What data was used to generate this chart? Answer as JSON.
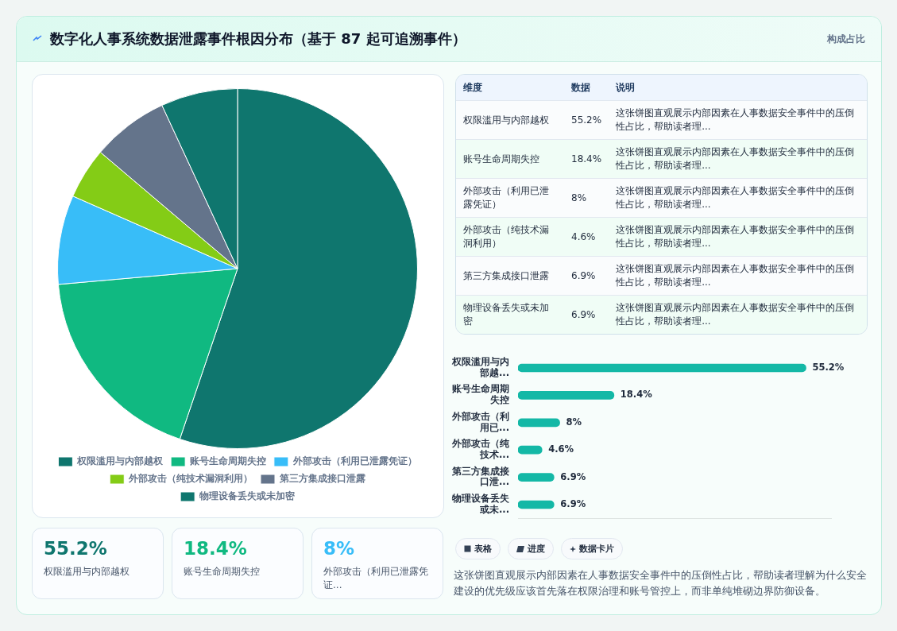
{
  "chart_data": [
    {
      "type": "other",
      "title": "数字化人事系统数据泄露事件根因分布（基于 87 起可追溯事件）",
      "subtitle": "构成占比"
    },
    {
      "type": "pie",
      "categories": [
        "权限滥用与内部越权",
        "账号生命周期失控",
        "外部攻击（利用已泄露凭证）",
        "外部攻击（纯技术漏洞利用）",
        "第三方集成接口泄露",
        "物理设备丢失或未加密"
      ],
      "values": [
        55.2,
        18.4,
        8,
        4.6,
        6.9,
        6.9
      ],
      "colors": [
        "#0f766e",
        "#10b981",
        "#38bdf8",
        "#84cc16",
        "#64748b",
        "#0f766e"
      ],
      "legend": "bottom"
    },
    {
      "type": "other",
      "categories": [
        "权限滥用与内部越权",
        "账号生命周期失控",
        "外部攻击（利用已泄露凭证）",
        "外部攻击（纯技术漏洞利用）",
        "第三方集成接口泄露",
        "物理设备丢失或未加密"
      ],
      "value_labels": [
        "55.2%",
        "18.4%",
        "8%",
        "4.6%",
        "6.9%",
        "6.9%"
      ],
      "annotations": [
        "维度",
        "数据",
        "说明",
        "这张饼图直观展示内部因素在人事数据安全事件中的压倒性占比，帮助读者理..."
      ]
    },
    {
      "type": "bar",
      "orientation": "horizontal",
      "categories": [
        "权限滥用与内部越...",
        "账号生命周期失控",
        "外部攻击（利用已...",
        "外部攻击（纯技术...",
        "第三方集成接口泄...",
        "物理设备丢失或未..."
      ],
      "values": [
        55.2,
        18.4,
        8,
        4.6,
        6.9,
        6.9
      ],
      "value_labels": [
        "55.2%",
        "18.4%",
        "8%",
        "4.6%",
        "6.9%",
        "6.9%"
      ],
      "color": "#14b8a6",
      "tick_labels": "y",
      "grid": false
    },
    {
      "type": "other",
      "categories": [
        "权限滥用与内部越权",
        "账号生命周期失控",
        "外部攻击（利用已泄露凭证..."
      ],
      "value_labels": [
        "55.2%",
        "18.4%",
        "8%"
      ]
    },
    {
      "type": "other",
      "categories": [
        "表格",
        "进度",
        "数据卡片"
      ],
      "annotations": [
        "这张饼图直观展示内部因素在人事数据安全事件中的压倒性占比，帮助读者理解为什么安全建设的优先级应该首先落在权限治理和账号管控上，而非单纯堆砌边界防御设备。"
      ]
    }
  ]
}
